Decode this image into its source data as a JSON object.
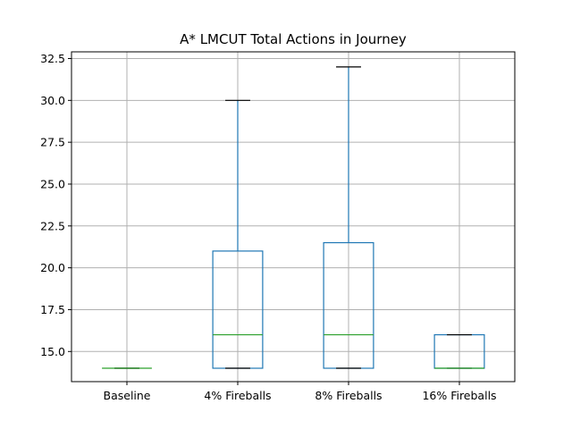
{
  "chart_data": {
    "type": "box",
    "title": "A* LMCUT Total Actions in Journey",
    "xlabel": "",
    "ylabel": "",
    "categories": [
      "Baseline",
      "4% Fireballs",
      "8% Fireballs",
      "16% Fireballs"
    ],
    "boxes": [
      {
        "category": "Baseline",
        "whisker_low": 14.0,
        "q1": 14.0,
        "median": 14.0,
        "q3": 14.0,
        "whisker_high": 14.0
      },
      {
        "category": "4% Fireballs",
        "whisker_low": 14.0,
        "q1": 14.0,
        "median": 16.0,
        "q3": 21.0,
        "whisker_high": 30.0
      },
      {
        "category": "8% Fireballs",
        "whisker_low": 14.0,
        "q1": 14.0,
        "median": 16.0,
        "q3": 21.5,
        "whisker_high": 32.0
      },
      {
        "category": "16% Fireballs",
        "whisker_low": 14.0,
        "q1": 14.0,
        "median": 14.0,
        "q3": 16.0,
        "whisker_high": 16.0
      }
    ],
    "ylim": [
      13.2,
      32.9
    ],
    "yticks": [
      15.0,
      17.5,
      20.0,
      22.5,
      25.0,
      27.5,
      30.0,
      32.5
    ],
    "ytick_labels": [
      "15.0",
      "17.5",
      "20.0",
      "22.5",
      "25.0",
      "27.5",
      "30.0",
      "32.5"
    ],
    "grid": true,
    "colors": {
      "box": "#1f77b4",
      "median": "#2ca02c",
      "whisker_cap": "#000000",
      "grid": "#b0b0b0"
    }
  }
}
